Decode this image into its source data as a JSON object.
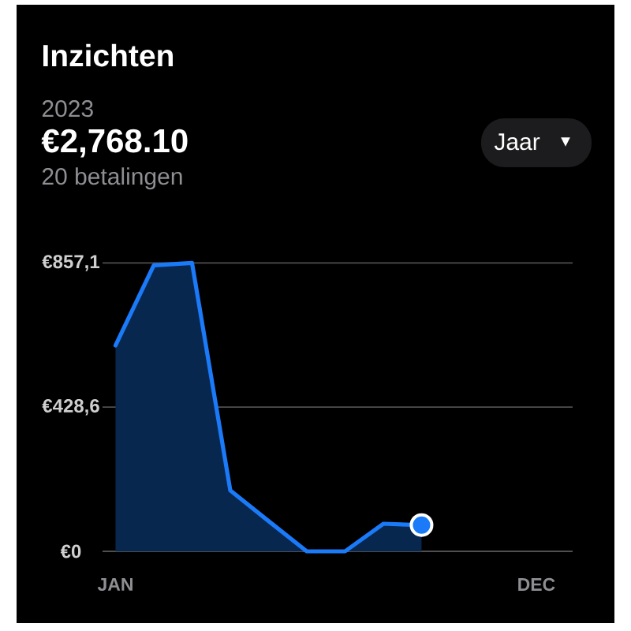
{
  "chart_data": {
    "type": "area",
    "title": "Inzichten",
    "subtitle": "2023",
    "annotations": [
      "€2,768.10",
      "20 betalingen",
      "Jaar",
      "▼"
    ],
    "categories": [
      "JAN",
      null,
      null,
      null,
      null,
      null,
      null,
      null,
      null,
      null,
      null,
      "DEC"
    ],
    "series": [
      {
        "color": "#1a7af8",
        "values": [
          612,
          850,
          857,
          181,
          90,
          0,
          0,
          82,
          78,
          null,
          null,
          null
        ]
      },
      {
        "type": "scatter",
        "color": "#1a7af8",
        "values": [
          null,
          null,
          null,
          null,
          null,
          null,
          null,
          null,
          78,
          null,
          null,
          null
        ]
      }
    ],
    "ylim": [
      0,
      857.1
    ],
    "yticks": [
      {
        "value": 0,
        "label": "€0"
      },
      {
        "value": 428.6,
        "label": "€428,6"
      },
      {
        "value": 857.1,
        "label": "€857,1"
      }
    ],
    "grid": "y"
  }
}
